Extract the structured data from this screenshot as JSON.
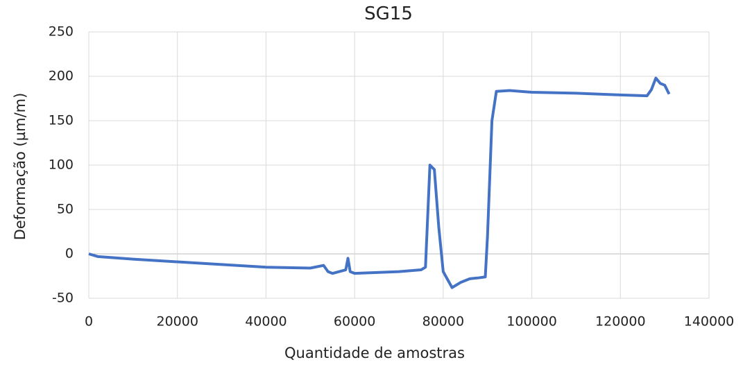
{
  "chart_data": {
    "type": "line",
    "title": "SG15",
    "x_label": "Quantidade de amostras",
    "y_label": "Deformação (µm/m)",
    "x": [
      0,
      2000,
      10000,
      20000,
      30000,
      40000,
      50000,
      53000,
      54000,
      55000,
      58000,
      58500,
      59000,
      60000,
      70000,
      75000,
      76000,
      77000,
      78000,
      79000,
      80000,
      82000,
      84000,
      86000,
      88000,
      89500,
      90000,
      91000,
      92000,
      95000,
      100000,
      110000,
      120000,
      126000,
      127000,
      128000,
      129000,
      130000,
      131000
    ],
    "series": [
      {
        "name": "SG15",
        "color": "#4472c4",
        "values": [
          0,
          -3,
          -6,
          -9,
          -12,
          -15,
          -16,
          -13,
          -20,
          -22,
          -18,
          -5,
          -20,
          -22,
          -20,
          -18,
          -15,
          100,
          95,
          30,
          -20,
          -38,
          -32,
          -28,
          -27,
          -26,
          20,
          150,
          183,
          184,
          182,
          181,
          179,
          178,
          185,
          198,
          192,
          190,
          180
        ]
      }
    ],
    "xlim": [
      0,
      140000
    ],
    "xticks": [
      0,
      20000,
      40000,
      60000,
      80000,
      100000,
      120000,
      140000
    ],
    "ylim": [
      -50,
      250
    ],
    "yticks": [
      -50,
      0,
      50,
      100,
      150,
      200,
      250
    ],
    "grid": true
  }
}
